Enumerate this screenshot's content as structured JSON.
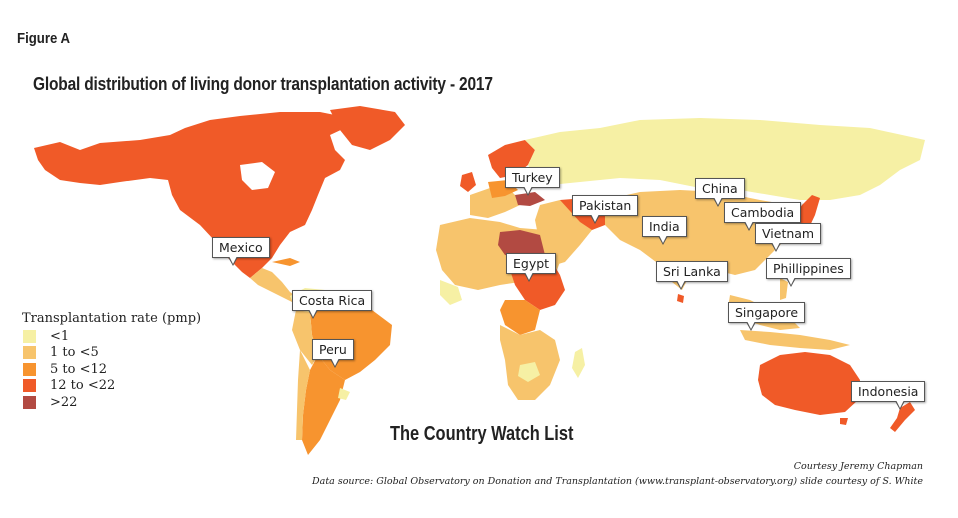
{
  "figure_label": "Figure A",
  "title": "Global distribution of living donor transplantation activity - 2017",
  "subtitle": "The Country Watch List",
  "legend": {
    "title": "Transplantation rate (pmp)",
    "items": [
      {
        "label": "<1",
        "color": "#f6f0a4"
      },
      {
        "label": "1 to <5",
        "color": "#f7c46c"
      },
      {
        "label": "5 to <12",
        "color": "#f7942f"
      },
      {
        "label": "12 to <22",
        "color": "#f05a28"
      },
      {
        "label": ">22",
        "color": "#b24a42"
      }
    ]
  },
  "callouts": [
    {
      "label": "Mexico"
    },
    {
      "label": "Costa Rica"
    },
    {
      "label": "Peru"
    },
    {
      "label": "Turkey"
    },
    {
      "label": "Egypt"
    },
    {
      "label": "Pakistan"
    },
    {
      "label": "India"
    },
    {
      "label": "Sri Lanka"
    },
    {
      "label": "China"
    },
    {
      "label": "Cambodia"
    },
    {
      "label": "Vietnam"
    },
    {
      "label": "Phillippines"
    },
    {
      "label": "Singapore"
    },
    {
      "label": "Indonesia"
    }
  ],
  "credits": {
    "line1": "Courtesy Jeremy Chapman",
    "line2": "Data source: Global Observatory on Donation and Transplantation (www.transplant-observatory.org) slide courtesy of S. White"
  }
}
